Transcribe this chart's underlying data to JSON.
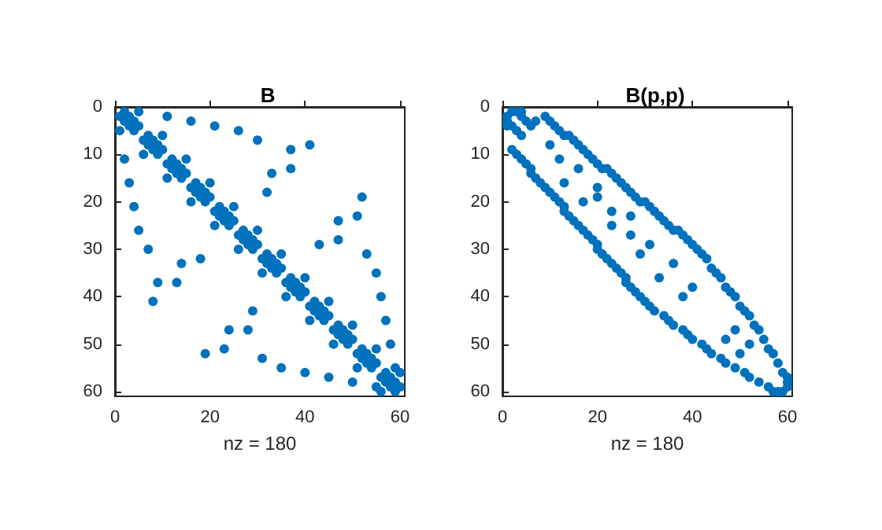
{
  "chart_data": [
    {
      "type": "scatter",
      "title": "B",
      "xlabel": "nz = 180",
      "xlim": [
        0,
        61
      ],
      "ylim": [
        61,
        0
      ],
      "xticks": [
        0,
        20,
        40,
        60
      ],
      "yticks": [
        0,
        10,
        20,
        30,
        40,
        50,
        60
      ],
      "marker": "circle",
      "grid": false,
      "series": [
        {
          "color": "#0072bd",
          "x": [
            1,
            2,
            2,
            3,
            3,
            4,
            4,
            5,
            1,
            5,
            6,
            7,
            7,
            8,
            8,
            9,
            9,
            10,
            6,
            10,
            11,
            12,
            12,
            13,
            13,
            14,
            14,
            15,
            11,
            15,
            16,
            17,
            17,
            18,
            18,
            19,
            19,
            20,
            16,
            20,
            21,
            22,
            22,
            23,
            23,
            24,
            24,
            25,
            21,
            25,
            26,
            27,
            27,
            28,
            28,
            29,
            29,
            30,
            26,
            30,
            31,
            32,
            32,
            33,
            33,
            34,
            34,
            35,
            31,
            35,
            36,
            37,
            37,
            38,
            38,
            39,
            39,
            40,
            36,
            40,
            41,
            42,
            42,
            43,
            43,
            44,
            44,
            45,
            41,
            45,
            46,
            47,
            47,
            48,
            48,
            49,
            49,
            50,
            46,
            50,
            51,
            52,
            52,
            53,
            53,
            54,
            54,
            55,
            51,
            55,
            56,
            57,
            57,
            58,
            58,
            59,
            59,
            60,
            56,
            60,
            11,
            16,
            21,
            26,
            30,
            41,
            37,
            37,
            33,
            32,
            52,
            51,
            47,
            47,
            43,
            53,
            55,
            56,
            57,
            58,
            59,
            2,
            3,
            4,
            5,
            7,
            8,
            9,
            13,
            14,
            18,
            19,
            23,
            24,
            28,
            29,
            31,
            35,
            40,
            45,
            50,
            55
          ],
          "values": [
            2,
            1,
            3,
            2,
            4,
            3,
            5,
            4,
            5,
            1,
            7,
            6,
            8,
            7,
            9,
            8,
            10,
            9,
            10,
            6,
            12,
            11,
            13,
            12,
            14,
            13,
            15,
            14,
            15,
            11,
            17,
            16,
            18,
            17,
            19,
            18,
            20,
            19,
            20,
            16,
            22,
            21,
            23,
            22,
            24,
            23,
            25,
            24,
            25,
            21,
            27,
            26,
            28,
            27,
            29,
            28,
            30,
            29,
            30,
            26,
            32,
            31,
            33,
            32,
            34,
            33,
            35,
            34,
            35,
            31,
            37,
            36,
            38,
            37,
            39,
            38,
            40,
            39,
            40,
            36,
            42,
            41,
            43,
            42,
            44,
            43,
            45,
            44,
            45,
            41,
            47,
            46,
            48,
            47,
            49,
            48,
            50,
            49,
            50,
            46,
            52,
            51,
            53,
            52,
            54,
            53,
            55,
            54,
            55,
            51,
            57,
            56,
            58,
            57,
            59,
            58,
            60,
            59,
            60,
            56,
            2,
            3,
            4,
            5,
            7,
            8,
            9,
            13,
            14,
            18,
            19,
            23,
            24,
            28,
            29,
            31,
            35,
            40,
            45,
            50,
            55,
            11,
            16,
            21,
            26,
            30,
            41,
            37,
            37,
            33,
            32,
            52,
            51,
            47,
            47,
            43,
            53,
            55,
            56,
            57,
            58,
            59
          ]
        }
      ]
    },
    {
      "type": "scatter",
      "title": "B(p,p)",
      "xlabel": "nz = 180",
      "xlim": [
        0,
        61
      ],
      "ylim": [
        61,
        0
      ],
      "xticks": [
        0,
        20,
        40,
        60
      ],
      "yticks": [
        0,
        10,
        20,
        30,
        40,
        50,
        60
      ],
      "marker": "circle",
      "grid": false,
      "series": [
        {
          "color": "#0072bd",
          "x": [
            9,
            10,
            11,
            12,
            13,
            14,
            15,
            16,
            17,
            18,
            19,
            20,
            21,
            22,
            23,
            24,
            25,
            26,
            27,
            28,
            29,
            30,
            31,
            32,
            33,
            34,
            35,
            36,
            37,
            38,
            39,
            40,
            41,
            42,
            43,
            44,
            45,
            46,
            47,
            48,
            49,
            50,
            51,
            52,
            53,
            54,
            55,
            56,
            57,
            58,
            59,
            60,
            2,
            3,
            4,
            5,
            6,
            6,
            7,
            8,
            9,
            10,
            11,
            12,
            13,
            13,
            14,
            15,
            16,
            17,
            18,
            19,
            20,
            20,
            21,
            22,
            23,
            24,
            25,
            26,
            26,
            27,
            28,
            29,
            30,
            31,
            32,
            34,
            35,
            36,
            38,
            39,
            40,
            42,
            43,
            44,
            46,
            47,
            49,
            51,
            52,
            54,
            56,
            58,
            7,
            10,
            12,
            16,
            13,
            20,
            20,
            17,
            23,
            23,
            27,
            27,
            31,
            29,
            36,
            33,
            40,
            38,
            49,
            47,
            52,
            50,
            2,
            3,
            4,
            1,
            1,
            1,
            2,
            4,
            3,
            5,
            6,
            4,
            60,
            59,
            57,
            60
          ],
          "values": [
            2,
            3,
            4,
            5,
            6,
            6,
            7,
            8,
            9,
            10,
            11,
            12,
            13,
            13,
            14,
            15,
            16,
            17,
            18,
            19,
            20,
            20,
            21,
            22,
            23,
            24,
            25,
            26,
            26,
            27,
            28,
            29,
            30,
            31,
            32,
            34,
            35,
            36,
            38,
            39,
            40,
            42,
            43,
            44,
            46,
            47,
            49,
            51,
            52,
            54,
            56,
            58,
            9,
            10,
            11,
            12,
            13,
            14,
            15,
            16,
            17,
            18,
            19,
            20,
            21,
            22,
            23,
            24,
            25,
            26,
            27,
            28,
            29,
            30,
            31,
            32,
            33,
            34,
            35,
            36,
            37,
            38,
            39,
            40,
            41,
            42,
            43,
            44,
            45,
            46,
            47,
            48,
            49,
            50,
            51,
            52,
            53,
            54,
            55,
            56,
            57,
            58,
            59,
            60,
            3,
            8,
            11,
            13,
            16,
            17,
            19,
            20,
            22,
            25,
            23,
            27,
            29,
            31,
            33,
            36,
            38,
            40,
            47,
            49,
            50,
            52,
            1,
            1,
            1,
            2,
            3,
            4,
            4,
            2,
            5,
            3,
            4,
            6,
            59,
            60,
            60,
            57
          ]
        }
      ]
    }
  ]
}
